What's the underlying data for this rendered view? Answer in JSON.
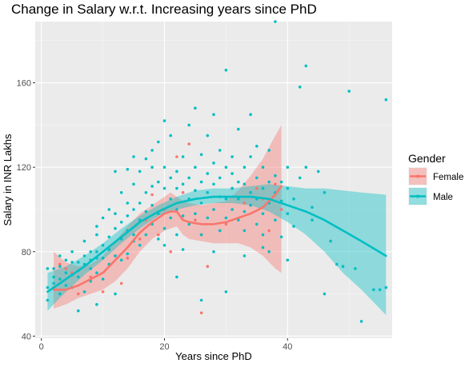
{
  "chart_data": {
    "type": "scatter",
    "title": "Change in Salary w.r.t. Increasing years since PhD",
    "xlabel": "Years since PhD",
    "ylabel": "Salary in INR Lakhs",
    "xlim": [
      -1,
      57
    ],
    "ylim": [
      39,
      189
    ],
    "x_ticks": [
      0,
      20,
      40
    ],
    "x_tick_labels": [
      "0",
      "20",
      "40"
    ],
    "y_ticks": [
      40,
      80,
      120,
      160
    ],
    "y_tick_labels": [
      "40",
      "80",
      "120",
      "160"
    ],
    "grid": true,
    "legend": {
      "title": "Gender",
      "placement": "right",
      "entries": [
        {
          "label": "Female",
          "color": "#F8766D"
        },
        {
          "label": "Male",
          "color": "#00BFC4"
        }
      ]
    },
    "series": [
      {
        "name": "Female",
        "color": "#F8766D",
        "points": [
          [
            2,
            63
          ],
          [
            3,
            74
          ],
          [
            4,
            72
          ],
          [
            5,
            70
          ],
          [
            6,
            60
          ],
          [
            8,
            68
          ],
          [
            10,
            61
          ],
          [
            11,
            74
          ],
          [
            12,
            78
          ],
          [
            13,
            65
          ],
          [
            14,
            77
          ],
          [
            16,
            86
          ],
          [
            17,
            95
          ],
          [
            18,
            107
          ],
          [
            19,
            88
          ],
          [
            20,
            100
          ],
          [
            21,
            80
          ],
          [
            22,
            125
          ],
          [
            23,
            108
          ],
          [
            24,
            131
          ],
          [
            25,
            95
          ],
          [
            26,
            88
          ],
          [
            27,
            73
          ],
          [
            28,
            100
          ],
          [
            29,
            90
          ],
          [
            30,
            93
          ],
          [
            31,
            110
          ],
          [
            33,
            103
          ],
          [
            35,
            110
          ],
          [
            36,
            105
          ],
          [
            37,
            90
          ],
          [
            38,
            112
          ],
          [
            39,
            100
          ],
          [
            26,
            51
          ]
        ],
        "smooth": {
          "x": [
            2,
            4,
            6,
            8,
            10,
            12,
            14,
            16,
            18,
            20,
            21,
            22,
            23,
            24,
            26,
            28,
            30,
            32,
            34,
            36,
            38,
            39
          ],
          "y": [
            62,
            62,
            64,
            67,
            70,
            76,
            82,
            89,
            94,
            98,
            99,
            99,
            95,
            94,
            93,
            93,
            94,
            96,
            98,
            101,
            107,
            111
          ],
          "lower": [
            53,
            55,
            58,
            60,
            62,
            66,
            72,
            80,
            86,
            90,
            91,
            92,
            88,
            86,
            85,
            84,
            84,
            84,
            82,
            78,
            72,
            70
          ],
          "upper": [
            80,
            75,
            73,
            74,
            78,
            85,
            92,
            98,
            102,
            106,
            108,
            106,
            104,
            103,
            102,
            103,
            104,
            109,
            116,
            124,
            135,
            140
          ]
        }
      },
      {
        "name": "Male",
        "color": "#00BFC4",
        "points": [
          [
            1,
            63
          ],
          [
            1,
            57
          ],
          [
            1,
            72
          ],
          [
            2,
            65
          ],
          [
            2,
            68
          ],
          [
            2,
            72
          ],
          [
            3,
            60
          ],
          [
            3,
            67
          ],
          [
            3,
            73
          ],
          [
            3,
            78
          ],
          [
            4,
            70
          ],
          [
            4,
            76
          ],
          [
            4,
            64
          ],
          [
            5,
            75
          ],
          [
            5,
            63
          ],
          [
            5,
            80
          ],
          [
            5,
            69
          ],
          [
            6,
            71
          ],
          [
            6,
            75
          ],
          [
            6,
            68
          ],
          [
            7,
            78
          ],
          [
            7,
            74
          ],
          [
            7,
            61
          ],
          [
            7,
            85
          ],
          [
            8,
            72
          ],
          [
            8,
            80
          ],
          [
            8,
            66
          ],
          [
            8,
            76
          ],
          [
            9,
            80
          ],
          [
            9,
            77
          ],
          [
            9,
            70
          ],
          [
            9,
            88
          ],
          [
            9,
            92
          ],
          [
            10,
            83
          ],
          [
            10,
            77
          ],
          [
            10,
            67
          ],
          [
            10,
            96
          ],
          [
            11,
            87
          ],
          [
            11,
            74
          ],
          [
            11,
            100
          ],
          [
            11,
            81
          ],
          [
            12,
            91
          ],
          [
            12,
            78
          ],
          [
            12,
            98
          ],
          [
            12,
            118
          ],
          [
            13,
            86
          ],
          [
            13,
            94
          ],
          [
            13,
            108
          ],
          [
            13,
            76
          ],
          [
            14,
            97
          ],
          [
            14,
            90
          ],
          [
            14,
            103
          ],
          [
            14,
            119
          ],
          [
            14,
            79
          ],
          [
            15,
            112
          ],
          [
            15,
            85
          ],
          [
            15,
            100
          ],
          [
            15,
            125
          ],
          [
            16,
            103
          ],
          [
            16,
            95
          ],
          [
            16,
            118
          ],
          [
            16,
            83
          ],
          [
            17,
            108
          ],
          [
            17,
            124
          ],
          [
            17,
            99
          ],
          [
            17,
            88
          ],
          [
            18,
            111
          ],
          [
            18,
            93
          ],
          [
            18,
            102
          ],
          [
            18,
            128
          ],
          [
            19,
            113
          ],
          [
            19,
            98
          ],
          [
            19,
            86
          ],
          [
            19,
            132
          ],
          [
            20,
            120
          ],
          [
            20,
            110
          ],
          [
            20,
            91
          ],
          [
            20,
            142
          ],
          [
            20,
            83
          ],
          [
            21,
            105
          ],
          [
            21,
            96
          ],
          [
            21,
            115
          ],
          [
            21,
            135
          ],
          [
            22,
            118
          ],
          [
            22,
            100
          ],
          [
            22,
            110
          ],
          [
            22,
            88
          ],
          [
            23,
            112
          ],
          [
            23,
            97
          ],
          [
            23,
            125
          ],
          [
            23,
            81
          ],
          [
            24,
            105
          ],
          [
            24,
            115
          ],
          [
            24,
            93
          ],
          [
            24,
            140
          ],
          [
            25,
            120
          ],
          [
            25,
            109
          ],
          [
            25,
            98
          ],
          [
            25,
            148
          ],
          [
            26,
            113
          ],
          [
            26,
            103
          ],
          [
            26,
            126
          ],
          [
            26,
            88
          ],
          [
            27,
            117
          ],
          [
            27,
            108
          ],
          [
            27,
            96
          ],
          [
            27,
            135
          ],
          [
            28,
            122
          ],
          [
            28,
            112
          ],
          [
            28,
            100
          ],
          [
            28,
            145
          ],
          [
            29,
            115
          ],
          [
            29,
            106
          ],
          [
            29,
            90
          ],
          [
            29,
            128
          ],
          [
            30,
            120
          ],
          [
            30,
            105
          ],
          [
            30,
            96
          ],
          [
            30,
            166
          ],
          [
            31,
            110
          ],
          [
            31,
            117
          ],
          [
            31,
            125
          ],
          [
            31,
            100
          ],
          [
            32,
            113
          ],
          [
            32,
            105
          ],
          [
            32,
            95
          ],
          [
            32,
            138
          ],
          [
            33,
            112
          ],
          [
            33,
            120
          ],
          [
            33,
            99
          ],
          [
            33,
            90
          ],
          [
            34,
            108
          ],
          [
            34,
            125
          ],
          [
            34,
            102
          ],
          [
            34,
            145
          ],
          [
            35,
            115
          ],
          [
            35,
            105
          ],
          [
            35,
            93
          ],
          [
            35,
            130
          ],
          [
            36,
            110
          ],
          [
            36,
            120
          ],
          [
            36,
            98
          ],
          [
            36,
            88
          ],
          [
            37,
            113
          ],
          [
            37,
            103
          ],
          [
            37,
            128
          ],
          [
            37,
            80
          ],
          [
            38,
            108
          ],
          [
            38,
            116
          ],
          [
            38,
            95
          ],
          [
            38,
            189
          ],
          [
            39,
            113
          ],
          [
            39,
            104
          ],
          [
            39,
            87
          ],
          [
            40,
            110
          ],
          [
            40,
            98
          ],
          [
            40,
            120
          ],
          [
            41,
            105
          ],
          [
            41,
            92
          ],
          [
            42,
            115
          ],
          [
            42,
            158
          ],
          [
            43,
            120
          ],
          [
            43,
            168
          ],
          [
            44,
            101
          ],
          [
            45,
            118
          ],
          [
            46,
            108
          ],
          [
            47,
            85
          ],
          [
            48,
            74
          ],
          [
            49,
            73
          ],
          [
            50,
            156
          ],
          [
            51,
            72
          ],
          [
            52,
            47
          ],
          [
            54,
            62
          ],
          [
            55,
            62
          ],
          [
            56,
            152
          ],
          [
            56,
            63
          ],
          [
            26,
            57
          ],
          [
            36,
            82
          ],
          [
            15,
            88
          ],
          [
            18,
            120
          ],
          [
            22,
            68
          ],
          [
            28,
            80
          ],
          [
            33,
            78
          ],
          [
            40,
            76
          ],
          [
            44,
            95
          ],
          [
            46,
            60
          ],
          [
            12,
            60
          ],
          [
            6,
            52
          ],
          [
            9,
            55
          ],
          [
            30,
            61
          ]
        ],
        "smooth": {
          "x": [
            1,
            4,
            7,
            10,
            13,
            16,
            19,
            22,
            25,
            28,
            31,
            34,
            37,
            40,
            43,
            46,
            49,
            52,
            56
          ],
          "y": [
            61,
            67,
            73,
            80,
            87,
            94,
            99,
            103,
            105,
            106,
            106,
            106,
            105,
            102,
            99,
            95,
            90,
            85,
            78
          ],
          "lower": [
            52,
            61,
            69,
            76,
            84,
            91,
            97,
            100,
            102,
            103,
            103,
            102,
            99,
            94,
            88,
            80,
            70,
            62,
            50
          ],
          "upper": [
            70,
            73,
            78,
            84,
            91,
            97,
            102,
            106,
            109,
            110,
            110,
            111,
            112,
            111,
            110,
            110,
            109,
            108,
            107
          ]
        }
      }
    ]
  }
}
